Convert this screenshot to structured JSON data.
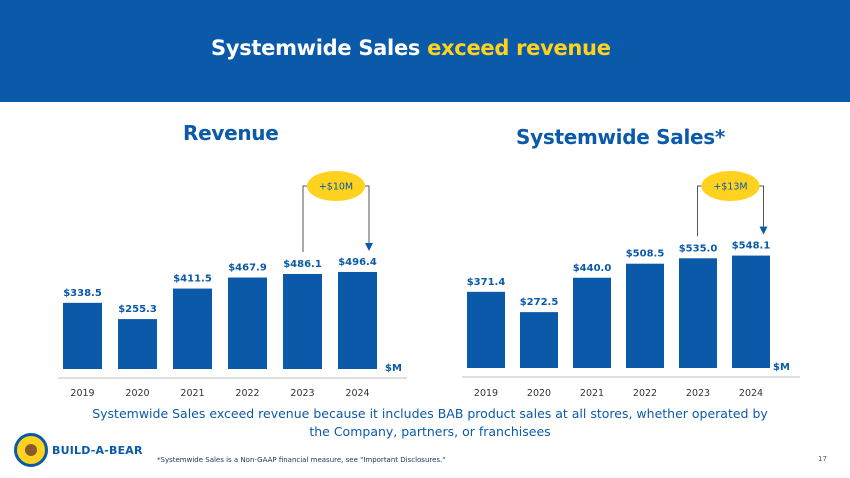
{
  "header": {
    "title_part1": "Systemwide Sales ",
    "title_part2": "exceed revenue"
  },
  "chart_data": [
    {
      "type": "bar",
      "title": "Revenue",
      "categories": [
        "2019",
        "2020",
        "2021",
        "2022",
        "2023",
        "2024"
      ],
      "values": [
        338.5,
        255.3,
        411.5,
        467.9,
        486.1,
        496.4
      ],
      "labels": [
        "$338.5",
        "$255.3",
        "$411.5",
        "$467.9",
        "$486.1",
        "$496.4"
      ],
      "unit_label": "$M",
      "annotation": "+$10M",
      "annotation_from": "2023",
      "annotation_to": "2024",
      "ylim": [
        0,
        600
      ]
    },
    {
      "type": "bar",
      "title": "Systemwide Sales*",
      "categories": [
        "2019",
        "2020",
        "2021",
        "2022",
        "2023",
        "2024"
      ],
      "values": [
        371.4,
        272.5,
        440.0,
        508.5,
        535.0,
        548.1
      ],
      "labels": [
        "$371.4",
        "$272.5",
        "$440.0",
        "$508.5",
        "$535.0",
        "$548.1"
      ],
      "unit_label": "$M",
      "annotation": "+$13M",
      "annotation_from": "2023",
      "annotation_to": "2024",
      "ylim": [
        0,
        600
      ]
    }
  ],
  "caption": "Systemwide Sales exceed revenue because it includes BAB product sales at all stores, whether operated by the Company, partners, or franchisees",
  "footnote": "*Systemwide Sales is a Non-GAAP financial measure, see \"Important Disclosures.\"",
  "page_number": "17",
  "brand": {
    "name": "BUILD-A-BEAR"
  },
  "colors": {
    "primary": "#0B5AA9",
    "accent": "#FFD21F"
  }
}
